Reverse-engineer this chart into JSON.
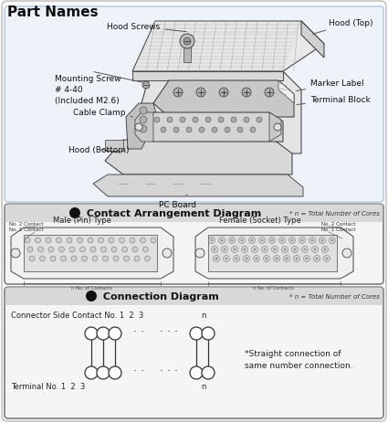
{
  "title": "Part Names",
  "bg_color": "#ffffff",
  "outer_border_color": "#aaaaaa",
  "section1_title": "Contact Arrangement Diagram",
  "section1_note": "* n = Total Number of Cores",
  "section2_title": "Connection Diagram",
  "section2_note": "* n = Total Number of Cores",
  "male_label": "Male (Pin) Type",
  "female_label": "Female (Socket) Type",
  "no2_contact": "No. 2 Contact",
  "no1_contact": "No. 1 Contact",
  "n_contacts_label1": "n No. of Contacts",
  "n_contacts_label2": "n No. of Contacts",
  "connector_side_label": "Connector Side Contact No. 1  2  3",
  "connector_n": "n",
  "terminal_label": "Terminal No. 1  2  3",
  "terminal_n": "n",
  "straight_note": "*Straight connection of\nsame number connection.",
  "part_labels": {
    "hood_screws": "Hood Screws",
    "hood_top": "Hood (Top)",
    "mounting_screw": "Mounting Screw\n# 4-40\n(Included M2.6)",
    "marker_label": "Marker Label",
    "terminal_block": "Terminal Block",
    "cable_clamp": "Cable Clamp",
    "hood_bottom": "Hood (Bottom)",
    "pc_board": "PC Board"
  },
  "section_header_bg": "#d8d8d8",
  "section_body_bg": "#f5f5f5",
  "section_border": "#888888",
  "top_area_bg": "#ffffff",
  "top_area_border": "#aaaacc"
}
